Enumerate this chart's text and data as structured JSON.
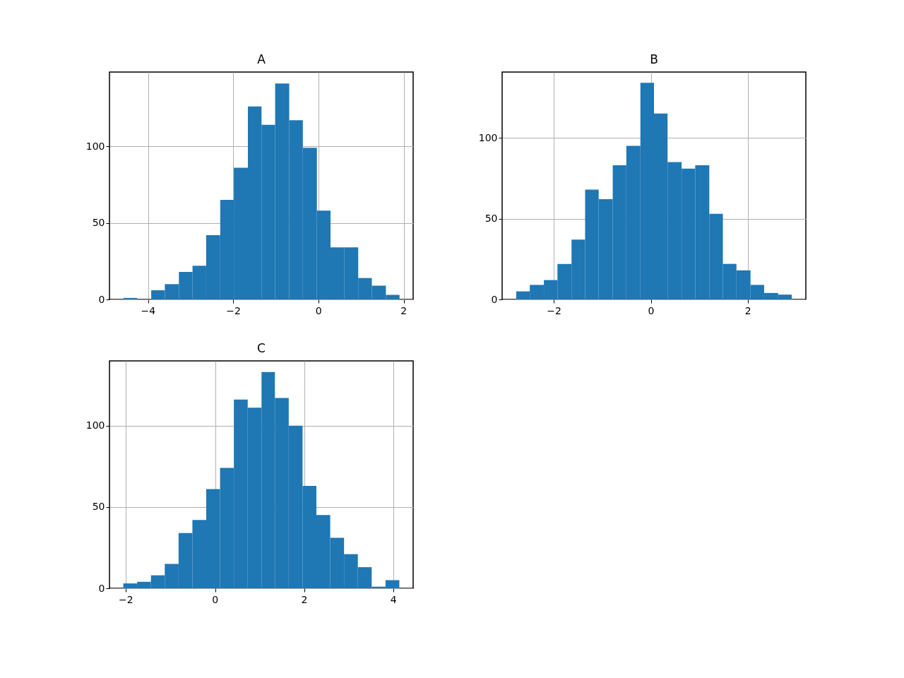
{
  "chart_data": [
    {
      "type": "histogram",
      "title": "A",
      "color": "#1f77b4",
      "bins": [
        -4.58,
        -4.26,
        -3.93,
        -3.61,
        -3.28,
        -2.96,
        -2.64,
        -2.31,
        -1.99,
        -1.66,
        -1.34,
        -1.02,
        -0.69,
        -0.37,
        -0.04,
        0.28,
        0.6,
        0.93,
        1.25,
        1.58,
        1.9
      ],
      "values": [
        1,
        0,
        6,
        10,
        18,
        22,
        42,
        65,
        86,
        126,
        114,
        141,
        117,
        99,
        58,
        34,
        34,
        14,
        9,
        3
      ],
      "xlim": [
        -4.91,
        2.22
      ],
      "ylim": [
        0,
        148.5
      ],
      "xticks": [
        -4,
        -2,
        0,
        2
      ],
      "yticks": [
        0,
        50,
        100
      ],
      "grid": true
    },
    {
      "type": "histogram",
      "title": "B",
      "color": "#1f77b4",
      "bins": [
        -2.78,
        -2.5,
        -2.21,
        -1.93,
        -1.64,
        -1.36,
        -1.08,
        -0.79,
        -0.51,
        -0.22,
        0.06,
        0.34,
        0.63,
        0.91,
        1.2,
        1.48,
        1.76,
        2.05,
        2.33,
        2.62,
        2.9
      ],
      "values": [
        5,
        9,
        12,
        22,
        37,
        68,
        62,
        83,
        95,
        134,
        115,
        85,
        81,
        83,
        53,
        22,
        18,
        9,
        4,
        3
      ],
      "xlim": [
        -3.07,
        3.19
      ],
      "ylim": [
        0,
        140.7
      ],
      "xticks": [
        -2,
        0,
        2
      ],
      "yticks": [
        0,
        50,
        100
      ],
      "grid": true
    },
    {
      "type": "histogram",
      "title": "C",
      "color": "#1f77b4",
      "bins": [
        -2.06,
        -1.75,
        -1.44,
        -1.13,
        -0.82,
        -0.51,
        -0.2,
        0.11,
        0.42,
        0.73,
        1.04,
        1.34,
        1.65,
        1.96,
        2.27,
        2.58,
        2.89,
        3.2,
        3.51,
        3.82,
        4.13
      ],
      "values": [
        3,
        4,
        8,
        15,
        34,
        42,
        61,
        74,
        116,
        111,
        133,
        117,
        100,
        63,
        45,
        31,
        21,
        13,
        1,
        5
      ],
      "xlim": [
        -2.37,
        4.44
      ],
      "ylim": [
        0,
        139.8
      ],
      "xticks": [
        -2,
        0,
        2,
        4
      ],
      "yticks": [
        0,
        50,
        100
      ],
      "grid": true
    }
  ]
}
